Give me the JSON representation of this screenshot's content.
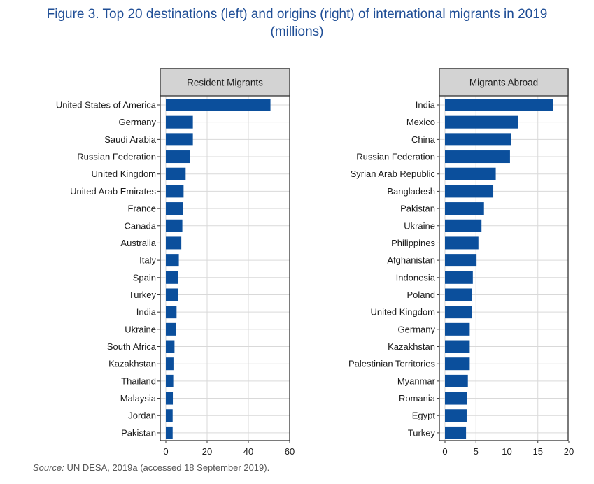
{
  "title_line1": "Figure 3. Top 20 destinations (left) and origins (right) of international migrants in 2019",
  "title_line2": "(millions)",
  "source_label": "Source:",
  "source_text": "UN DESA, 2019a (accessed 18 September 2019).",
  "colors": {
    "bar": "#0b4f9c",
    "strip": "#d3d3d3",
    "title": "#1f4e96",
    "grid": "#d9d9d9"
  },
  "chart_data": [
    {
      "type": "bar",
      "orientation": "horizontal",
      "title": "Resident Migrants",
      "xlabel": "",
      "ylabel": "",
      "xlim": [
        0,
        60
      ],
      "xticks": [
        0,
        20,
        40,
        60
      ],
      "grid": true,
      "categories": [
        "United States of America",
        "Germany",
        "Saudi Arabia",
        "Russian Federation",
        "United Kingdom",
        "United Arab Emirates",
        "France",
        "Canada",
        "Australia",
        "Italy",
        "Spain",
        "Turkey",
        "India",
        "Ukraine",
        "South Africa",
        "Kazakhstan",
        "Thailand",
        "Malaysia",
        "Jordan",
        "Pakistan"
      ],
      "values": [
        50.7,
        13.1,
        13.1,
        11.6,
        9.6,
        8.6,
        8.3,
        8.0,
        7.5,
        6.3,
        6.1,
        5.9,
        5.2,
        5.0,
        4.2,
        3.7,
        3.6,
        3.4,
        3.3,
        3.3
      ]
    },
    {
      "type": "bar",
      "orientation": "horizontal",
      "title": "Migrants Abroad",
      "xlabel": "",
      "ylabel": "",
      "xlim": [
        0,
        20
      ],
      "xticks": [
        0,
        5,
        10,
        15,
        20
      ],
      "grid": true,
      "categories": [
        "India",
        "Mexico",
        "China",
        "Russian Federation",
        "Syrian Arab Republic",
        "Bangladesh",
        "Pakistan",
        "Ukraine",
        "Philippines",
        "Afghanistan",
        "Indonesia",
        "Poland",
        "United Kingdom",
        "Germany",
        "Kazakhstan",
        "Palestinian Territories",
        "Myanmar",
        "Romania",
        "Egypt",
        "Turkey"
      ],
      "values": [
        17.5,
        11.8,
        10.7,
        10.5,
        8.2,
        7.8,
        6.3,
        5.9,
        5.4,
        5.1,
        4.5,
        4.4,
        4.3,
        4.0,
        4.0,
        4.0,
        3.7,
        3.6,
        3.5,
        3.4
      ]
    }
  ]
}
